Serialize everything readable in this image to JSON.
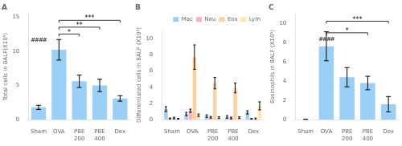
{
  "chart_data": [
    {
      "type": "bar",
      "title": "A",
      "categories": [
        "Sham",
        "OVA",
        "PBE\n200",
        "PBE\n400",
        "Dex"
      ],
      "values": [
        1.8,
        10.2,
        5.6,
        5.0,
        3.1
      ],
      "errors": [
        0.3,
        1.5,
        0.9,
        0.9,
        0.4
      ],
      "ylabel": "Total cells in BALF(X10⁵)",
      "ylim": [
        0,
        15.5
      ],
      "yticks": [
        0,
        5,
        10,
        15
      ],
      "grid": false,
      "annotations": [
        {
          "text": "####",
          "x": "Sham",
          "y": 11.2
        }
      ],
      "brackets": [
        {
          "from": "OVA",
          "to": "PBE\n200",
          "y": 12.5,
          "label": "*"
        },
        {
          "from": "OVA",
          "to": "PBE\n400",
          "y": 13.5,
          "label": "**"
        },
        {
          "from": "OVA",
          "to": "Dex",
          "y": 14.5,
          "label": "***"
        }
      ]
    },
    {
      "type": "bar",
      "title": "B",
      "categories": [
        "Sham",
        "OVA",
        "PBE\n200",
        "PBE\n400",
        "Dex"
      ],
      "series": [
        {
          "name": "Mac",
          "values": [
            1.3,
            0.7,
            0.45,
            0.35,
            0.9
          ],
          "errors": [
            0.3,
            0.2,
            0.15,
            0.15,
            0.2
          ]
        },
        {
          "name": "Neu",
          "values": [
            0.15,
            1.1,
            0.3,
            0.2,
            0.1
          ],
          "errors": [
            0.05,
            0.2,
            0.1,
            0.1,
            0.05
          ]
        },
        {
          "name": "Eos",
          "values": [
            0.2,
            7.7,
            4.5,
            3.9,
            0.1
          ],
          "errors": [
            0.1,
            1.5,
            0.7,
            0.6,
            0.1
          ]
        },
        {
          "name": "Lym",
          "values": [
            0.1,
            0.55,
            0.25,
            0.25,
            1.7
          ],
          "errors": [
            0.05,
            0.15,
            0.1,
            0.1,
            0.5
          ]
        }
      ],
      "ylabel": "Differentiated cells in BALF (X10⁵)",
      "ylim": [
        0,
        11
      ],
      "yticks": [
        0,
        2,
        4,
        6,
        8,
        10
      ],
      "grid": false,
      "legend": "upper right"
    },
    {
      "type": "bar",
      "title": "C",
      "categories": [
        "Sham",
        "OVA",
        "PBE\n200",
        "PBE\n400",
        "Dex"
      ],
      "values": [
        0.0,
        7.6,
        4.4,
        3.8,
        1.6
      ],
      "errors": [
        0.05,
        1.5,
        1.0,
        0.7,
        0.8
      ],
      "ylabel": "Eosinophils in BALF (X10⁵)",
      "ylim": [
        0,
        11
      ],
      "yticks": [
        0,
        2,
        4,
        6,
        8,
        10
      ],
      "grid": false,
      "annotations": [
        {
          "text": "####",
          "x": "OVA",
          "y": 8.0
        }
      ],
      "brackets": [
        {
          "from": "OVA",
          "to": "PBE\n400",
          "y": 9.0,
          "label": "*"
        },
        {
          "from": "OVA",
          "to": "Dex",
          "y": 10.2,
          "label": "***"
        }
      ]
    }
  ]
}
